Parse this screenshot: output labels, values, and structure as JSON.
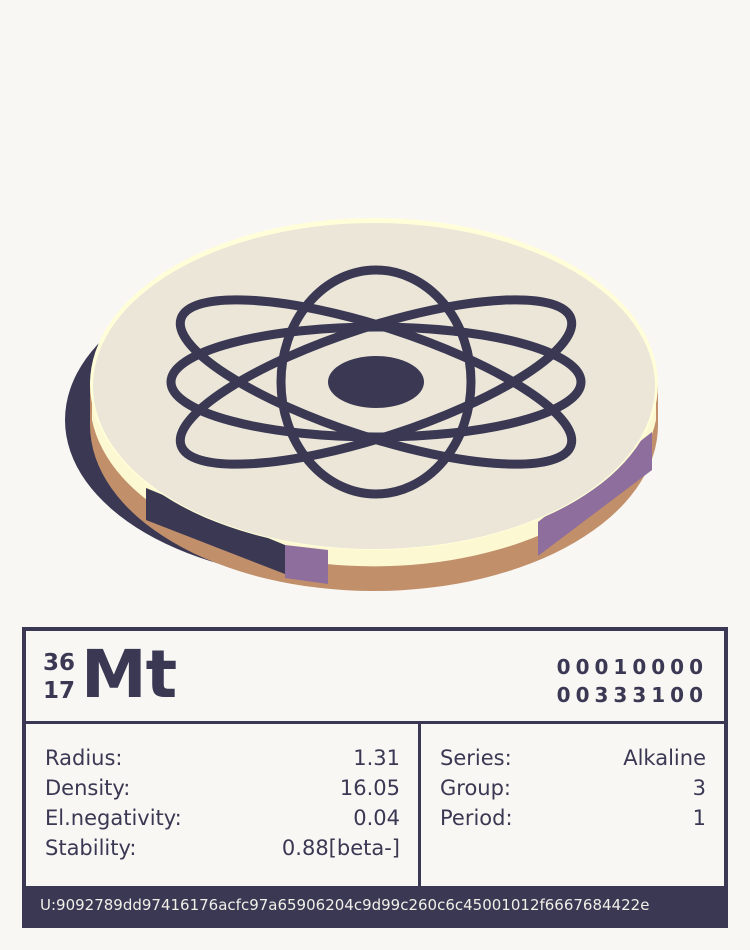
{
  "element": {
    "mass_number": "36",
    "atomic_number": "17",
    "symbol": "Mt",
    "bits": [
      "00010000",
      "00333100"
    ]
  },
  "properties_left": [
    {
      "label": "Radius:",
      "value": "1.31"
    },
    {
      "label": "Density:",
      "value": "16.05"
    },
    {
      "label": "El.negativity:",
      "value": "0.04"
    },
    {
      "label": "Stability:",
      "value": "0.88[beta-]"
    }
  ],
  "properties_right": [
    {
      "label": "Series:",
      "value": "Alkaline"
    },
    {
      "label": "Group:",
      "value": "3"
    },
    {
      "label": "Period:",
      "value": "1"
    }
  ],
  "footer": {
    "uid": "U:9092789dd97416176acfc97a65906204c9d99c260c6c45001012f6667684422e"
  },
  "colors": {
    "ink": "#3a3853",
    "coin_face": "#ebe6d8",
    "coin_side": "#c18f6a",
    "rim": "#fffed8",
    "purple": "#8e6e9c"
  },
  "coin_icon": "atom-icon"
}
